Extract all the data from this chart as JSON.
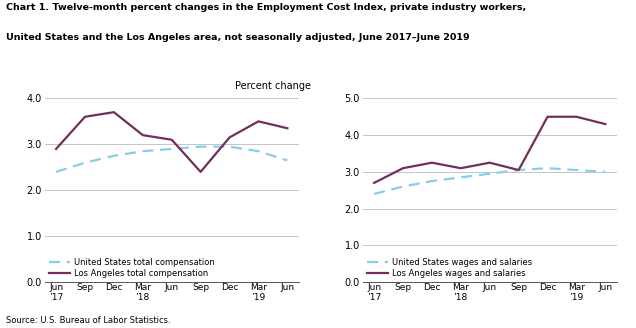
{
  "title_line1": "Chart 1. Twelve-month percent changes in the Employment Cost Index, private industry workers,",
  "title_line2": "United States and the Los Angeles area, not seasonally adjusted, June 2017–June 2019",
  "source": "Source: U.S. Bureau of Labor Statistics.",
  "ylabel": "Percent change",
  "x_labels": [
    "Jun\n’17",
    "Sep",
    "Dec",
    "Mar\n’18",
    "Jun",
    "Sep",
    "Dec",
    "Mar\n’19",
    "Jun"
  ],
  "x_indices": [
    0,
    1,
    2,
    3,
    4,
    5,
    6,
    7,
    8
  ],
  "left_ylim": [
    0.0,
    4.0
  ],
  "left_yticks": [
    0.0,
    1.0,
    2.0,
    3.0,
    4.0
  ],
  "right_ylim": [
    0.0,
    5.0
  ],
  "right_yticks": [
    0.0,
    1.0,
    2.0,
    3.0,
    4.0,
    5.0
  ],
  "us_total_comp": [
    2.4,
    2.6,
    2.75,
    2.85,
    2.9,
    2.95,
    2.95,
    2.85,
    2.65
  ],
  "la_total_comp": [
    2.9,
    3.6,
    3.7,
    3.2,
    3.1,
    2.4,
    3.15,
    3.5,
    3.35
  ],
  "us_wages_sal": [
    2.4,
    2.6,
    2.75,
    2.85,
    2.95,
    3.05,
    3.1,
    3.05,
    3.0
  ],
  "la_wages_sal": [
    2.7,
    3.1,
    3.25,
    3.1,
    3.25,
    3.05,
    4.5,
    4.5,
    4.3
  ],
  "us_color": "#87CEEB",
  "la_color": "#722F59",
  "linewidth": 1.6,
  "left_legend": [
    "United States total compensation",
    "Los Angeles total compensation"
  ],
  "right_legend": [
    "United States wages and salaries",
    "Los Angeles wages and salaries"
  ],
  "fig_width": 6.36,
  "fig_height": 3.28,
  "dpi": 100
}
